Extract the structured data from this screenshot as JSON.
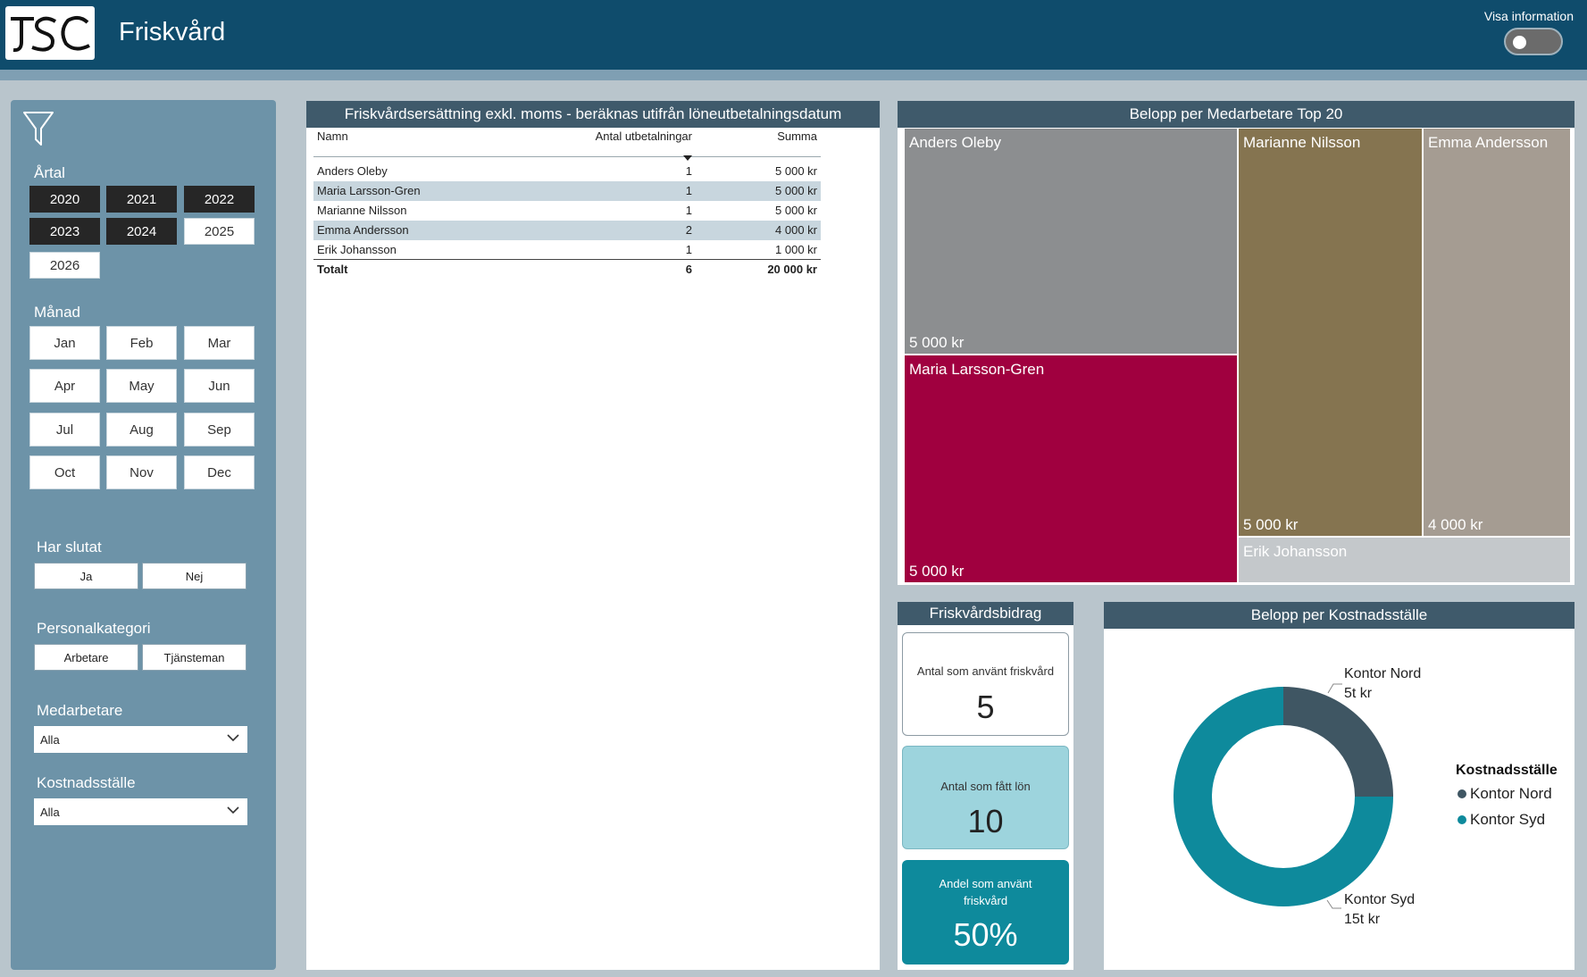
{
  "header": {
    "title": "Friskvård",
    "logo_text": "JSC",
    "info_toggle_label": "Visa information",
    "info_toggle_on": false
  },
  "filters": {
    "year_label": "Årtal",
    "years": [
      {
        "label": "2020",
        "selected": true
      },
      {
        "label": "2021",
        "selected": true
      },
      {
        "label": "2022",
        "selected": true
      },
      {
        "label": "2023",
        "selected": true
      },
      {
        "label": "2024",
        "selected": true
      },
      {
        "label": "2025",
        "selected": false
      },
      {
        "label": "2026",
        "selected": false
      }
    ],
    "month_label": "Månad",
    "months": [
      "Jan",
      "Feb",
      "Mar",
      "Apr",
      "May",
      "Jun",
      "Jul",
      "Aug",
      "Sep",
      "Oct",
      "Nov",
      "Dec"
    ],
    "quit_label": "Har slutat",
    "quit_options": [
      "Ja",
      "Nej"
    ],
    "category_label": "Personalkategori",
    "category_options": [
      "Arbetare",
      "Tjänsteman"
    ],
    "employee_label": "Medarbetare",
    "employee_value": "Alla",
    "costcenter_label": "Kostnadsställe",
    "costcenter_value": "Alla"
  },
  "payments": {
    "title": "Friskvårdsersättning exkl. moms - beräknas utifrån löneutbetalningsdatum",
    "columns": [
      "Namn",
      "Antal utbetalningar",
      "Summa"
    ],
    "rows": [
      {
        "name": "Anders Oleby",
        "count": "1",
        "sum": "5 000 kr"
      },
      {
        "name": "Maria Larsson-Gren",
        "count": "1",
        "sum": "5 000 kr"
      },
      {
        "name": "Marianne Nilsson",
        "count": "1",
        "sum": "5 000 kr"
      },
      {
        "name": "Emma Andersson",
        "count": "2",
        "sum": "4 000 kr"
      },
      {
        "name": "Erik Johansson",
        "count": "1",
        "sum": "1 000 kr"
      }
    ],
    "total": {
      "name": "Totalt",
      "count": "6",
      "sum": "20 000 kr"
    }
  },
  "treemap": {
    "title": "Belopp per Medarbetare Top 20",
    "items": [
      {
        "name": "Anders Oleby",
        "value_label": "5 000 kr",
        "color": "#8c8e90"
      },
      {
        "name": "Maria Larsson-Gren",
        "value_label": "5 000 kr",
        "color": "#a0003f"
      },
      {
        "name": "Marianne Nilsson",
        "value_label": "5 000 kr",
        "color": "#857450"
      },
      {
        "name": "Emma Andersson",
        "value_label": "4 000 kr",
        "color": "#a59c92"
      },
      {
        "name": "Erik Johansson",
        "value_label": "",
        "color": "#c4c8cb"
      }
    ]
  },
  "kpis": {
    "title": "Friskvårdsbidrag",
    "used_label": "Antal som använt friskvård",
    "used_value": "5",
    "paid_label": "Antal som fått lön",
    "paid_value": "10",
    "share_label": "Andel som använt friskvård",
    "share_value": "50%"
  },
  "cost_center": {
    "title": "Belopp per Kostnadsställe",
    "legend_title": "Kostnadsställe",
    "segments": [
      {
        "name": "Kontor Nord",
        "value_label": "5t kr",
        "value": 5000,
        "color": "#3f5663"
      },
      {
        "name": "Kontor Syd",
        "value_label": "15t kr",
        "value": 15000,
        "color": "#0e8a9c"
      }
    ]
  },
  "chart_data": [
    {
      "type": "table",
      "title": "Friskvårdsersättning exkl. moms - beräknas utifrån löneutbetalningsdatum",
      "columns": [
        "Namn",
        "Antal utbetalningar",
        "Summa"
      ],
      "rows": [
        [
          "Anders Oleby",
          1,
          5000
        ],
        [
          "Maria Larsson-Gren",
          1,
          5000
        ],
        [
          "Marianne Nilsson",
          1,
          5000
        ],
        [
          "Emma Andersson",
          2,
          4000
        ],
        [
          "Erik Johansson",
          1,
          1000
        ]
      ],
      "total": [
        "Totalt",
        6,
        20000
      ]
    },
    {
      "type": "treemap",
      "title": "Belopp per Medarbetare Top 20",
      "categories": [
        "Anders Oleby",
        "Maria Larsson-Gren",
        "Marianne Nilsson",
        "Emma Andersson",
        "Erik Johansson"
      ],
      "values": [
        5000,
        5000,
        5000,
        4000,
        1000
      ]
    },
    {
      "type": "pie",
      "title": "Belopp per Kostnadsställe",
      "categories": [
        "Kontor Nord",
        "Kontor Syd"
      ],
      "values": [
        5000,
        15000
      ],
      "legend": "right"
    }
  ]
}
